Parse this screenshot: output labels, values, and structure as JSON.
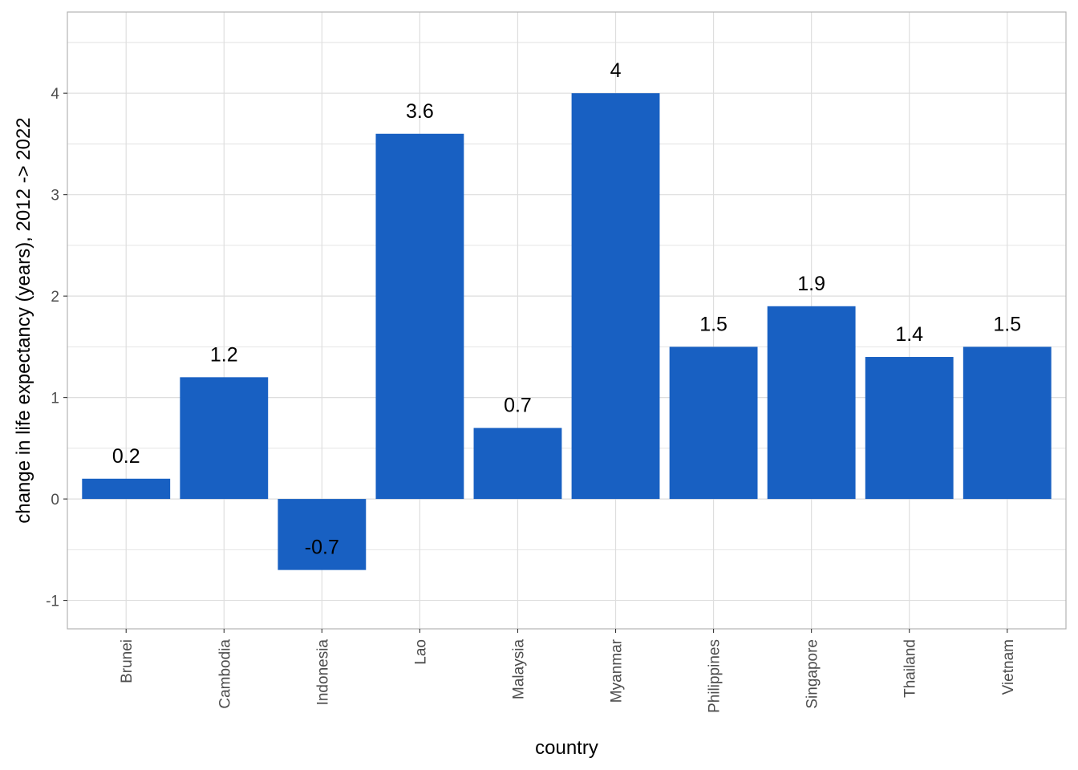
{
  "chart_data": {
    "type": "bar",
    "categories": [
      "Brunei",
      "Cambodia",
      "Indonesia",
      "Lao",
      "Malaysia",
      "Myanmar",
      "Philippines",
      "Singapore",
      "Thailand",
      "Vietnam"
    ],
    "values": [
      0.2,
      1.2,
      -0.7,
      3.6,
      0.7,
      4,
      1.5,
      1.9,
      1.4,
      1.5
    ],
    "data_labels": [
      "0.2",
      "1.2",
      "-0.7",
      "3.6",
      "0.7",
      "4",
      "1.5",
      "1.9",
      "1.4",
      "1.5"
    ],
    "title": "",
    "xlabel": "country",
    "ylabel": "change in life expectancy (years), 2012 -> 2022",
    "ylim": [
      -1.28,
      4.8
    ],
    "yticks": [
      -1,
      0,
      1,
      2,
      3,
      4
    ],
    "ytick_labels": [
      "-1",
      "0",
      "1",
      "2",
      "3",
      "4"
    ],
    "grid": true,
    "legend": "none",
    "bar_color": "#1860c2",
    "grid_color": "#dedede",
    "panel_border_color": "#b3b3b3"
  }
}
